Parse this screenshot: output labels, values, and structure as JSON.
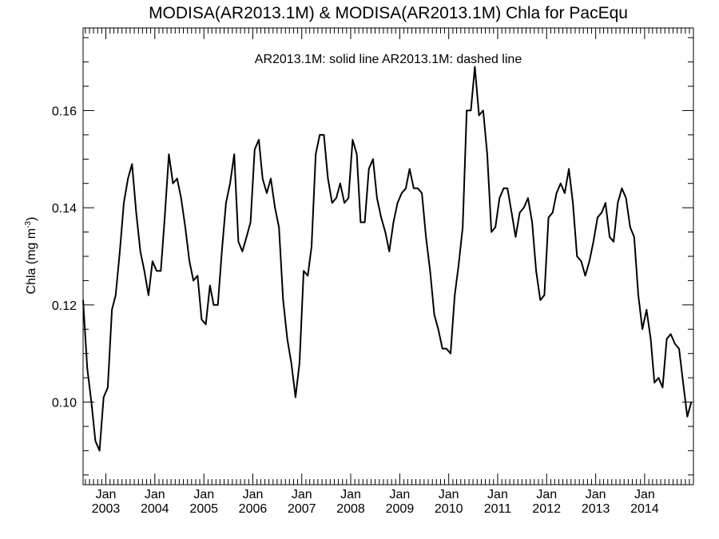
{
  "chart_data": {
    "type": "line",
    "title": "MODISA(AR2013.1M) & MODISA(AR2013.1M)  Chla for PacEqu",
    "legend_text": "AR2013.1M: solid line   AR2013.1M: dashed line",
    "ylabel": "Chla (mg m",
    "ylabel_sup": "-3",
    "ylabel_close": ")",
    "xlim": [
      "2002-07-15",
      "2014-12-31"
    ],
    "ylim": [
      0.083,
      0.177
    ],
    "x_tick_month": "Jan",
    "x_ticks": [
      {
        "date": "2003-01-01",
        "month": "Jan",
        "year": "2003"
      },
      {
        "date": "2004-01-01",
        "month": "Jan",
        "year": "2004"
      },
      {
        "date": "2005-01-01",
        "month": "Jan",
        "year": "2005"
      },
      {
        "date": "2006-01-01",
        "month": "Jan",
        "year": "2006"
      },
      {
        "date": "2007-01-01",
        "month": "Jan",
        "year": "2007"
      },
      {
        "date": "2008-01-01",
        "month": "Jan",
        "year": "2008"
      },
      {
        "date": "2009-01-01",
        "month": "Jan",
        "year": "2009"
      },
      {
        "date": "2010-01-01",
        "month": "Jan",
        "year": "2010"
      },
      {
        "date": "2011-01-01",
        "month": "Jan",
        "year": "2011"
      },
      {
        "date": "2012-01-01",
        "month": "Jan",
        "year": "2012"
      },
      {
        "date": "2013-01-01",
        "month": "Jan",
        "year": "2013"
      },
      {
        "date": "2014-01-01",
        "month": "Jan",
        "year": "2014"
      }
    ],
    "y_ticks": [
      {
        "value": 0.1,
        "label": "0.10"
      },
      {
        "value": 0.12,
        "label": "0.12"
      },
      {
        "value": 0.14,
        "label": "0.14"
      },
      {
        "value": 0.16,
        "label": "0.16"
      }
    ],
    "grid": false,
    "line_color": "#000000",
    "series": [
      {
        "style": "solid",
        "x": [
          "2002-07",
          "2002-08",
          "2002-09",
          "2002-10",
          "2002-11",
          "2002-12",
          "2003-01",
          "2003-02",
          "2003-03",
          "2003-04",
          "2003-05",
          "2003-06",
          "2003-07",
          "2003-08",
          "2003-09",
          "2003-10",
          "2003-11",
          "2003-12",
          "2004-01",
          "2004-02",
          "2004-03",
          "2004-04",
          "2004-05",
          "2004-06",
          "2004-07",
          "2004-08",
          "2004-09",
          "2004-10",
          "2004-11",
          "2004-12",
          "2005-01",
          "2005-02",
          "2005-03",
          "2005-04",
          "2005-05",
          "2005-06",
          "2005-07",
          "2005-08",
          "2005-09",
          "2005-10",
          "2005-11",
          "2005-12",
          "2006-01",
          "2006-02",
          "2006-03",
          "2006-04",
          "2006-05",
          "2006-06",
          "2006-07",
          "2006-08",
          "2006-09",
          "2006-10",
          "2006-11",
          "2006-12",
          "2007-01",
          "2007-02",
          "2007-03",
          "2007-04",
          "2007-05",
          "2007-06",
          "2007-07",
          "2007-08",
          "2007-09",
          "2007-10",
          "2007-11",
          "2007-12",
          "2008-01",
          "2008-02",
          "2008-03",
          "2008-04",
          "2008-05",
          "2008-06",
          "2008-07",
          "2008-08",
          "2008-09",
          "2008-10",
          "2008-11",
          "2008-12",
          "2009-01",
          "2009-02",
          "2009-03",
          "2009-04",
          "2009-05",
          "2009-06",
          "2009-07",
          "2009-08",
          "2009-09",
          "2009-10",
          "2009-11",
          "2009-12",
          "2010-01",
          "2010-02",
          "2010-03",
          "2010-04",
          "2010-05",
          "2010-06",
          "2010-07",
          "2010-08",
          "2010-09",
          "2010-10",
          "2010-11",
          "2010-12",
          "2011-01",
          "2011-02",
          "2011-03",
          "2011-04",
          "2011-05",
          "2011-06",
          "2011-07",
          "2011-08",
          "2011-09",
          "2011-10",
          "2011-11",
          "2011-12",
          "2012-01",
          "2012-02",
          "2012-03",
          "2012-04",
          "2012-05",
          "2012-06",
          "2012-07",
          "2012-08",
          "2012-09",
          "2012-10",
          "2012-11",
          "2012-12",
          "2013-01",
          "2013-02",
          "2013-03",
          "2013-04",
          "2013-05",
          "2013-06",
          "2013-07",
          "2013-08",
          "2013-09",
          "2013-10",
          "2013-11",
          "2013-12",
          "2014-01",
          "2014-02",
          "2014-03",
          "2014-04",
          "2014-05",
          "2014-06",
          "2014-07",
          "2014-08",
          "2014-09",
          "2014-10",
          "2014-11",
          "2014-12"
        ],
        "y": [
          0.121,
          0.107,
          0.1,
          0.092,
          0.09,
          0.101,
          0.103,
          0.119,
          0.122,
          0.131,
          0.141,
          0.146,
          0.149,
          0.139,
          0.131,
          0.127,
          0.122,
          0.129,
          0.127,
          0.127,
          0.138,
          0.151,
          0.145,
          0.146,
          0.142,
          0.136,
          0.129,
          0.125,
          0.126,
          0.117,
          0.116,
          0.124,
          0.12,
          0.12,
          0.131,
          0.141,
          0.145,
          0.151,
          0.133,
          0.131,
          0.134,
          0.137,
          0.152,
          0.154,
          0.146,
          0.143,
          0.146,
          0.14,
          0.136,
          0.121,
          0.113,
          0.108,
          0.101,
          0.108,
          0.127,
          0.126,
          0.132,
          0.151,
          0.155,
          0.155,
          0.146,
          0.141,
          0.142,
          0.145,
          0.141,
          0.142,
          0.154,
          0.151,
          0.137,
          0.137,
          0.148,
          0.15,
          0.142,
          0.138,
          0.135,
          0.131,
          0.137,
          0.141,
          0.143,
          0.144,
          0.148,
          0.144,
          0.144,
          0.143,
          0.134,
          0.127,
          0.118,
          0.115,
          0.111,
          0.111,
          0.11,
          0.122,
          0.128,
          0.136,
          0.16,
          0.16,
          0.169,
          0.159,
          0.16,
          0.151,
          0.135,
          0.136,
          0.142,
          0.144,
          0.144,
          0.139,
          0.134,
          0.139,
          0.14,
          0.142,
          0.137,
          0.127,
          0.121,
          0.122,
          0.138,
          0.139,
          0.143,
          0.145,
          0.143,
          0.148,
          0.141,
          0.13,
          0.129,
          0.126,
          0.129,
          0.133,
          0.138,
          0.139,
          0.141,
          0.134,
          0.133,
          0.141,
          0.144,
          0.142,
          0.136,
          0.134,
          0.122,
          0.115,
          0.119,
          0.113,
          0.104,
          0.105,
          0.103,
          0.113,
          0.114,
          0.112,
          0.111,
          0.104,
          0.097,
          0.1
        ]
      }
    ]
  }
}
